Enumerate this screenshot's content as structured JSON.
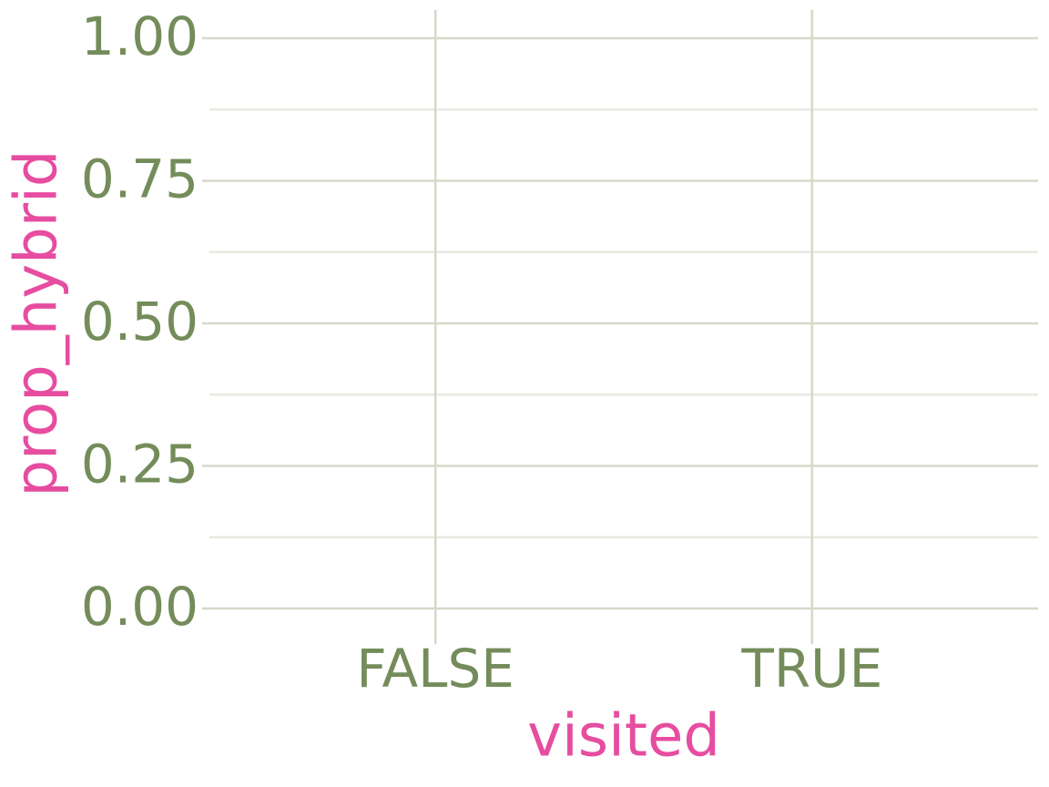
{
  "chart_data": {
    "type": "bar",
    "categories": [
      "FALSE",
      "TRUE"
    ],
    "xlabel": "visited",
    "ylabel": "prop_hybrid",
    "ylim": [
      -0.05,
      1.05
    ],
    "yticks": [
      {
        "value": 0,
        "label": "0.00"
      },
      {
        "value": 0.25,
        "label": "0.25"
      },
      {
        "value": 0.5,
        "label": "0.50"
      },
      {
        "value": 0.75,
        "label": "0.75"
      },
      {
        "value": 1,
        "label": "1.00"
      }
    ],
    "grid": true
  }
}
